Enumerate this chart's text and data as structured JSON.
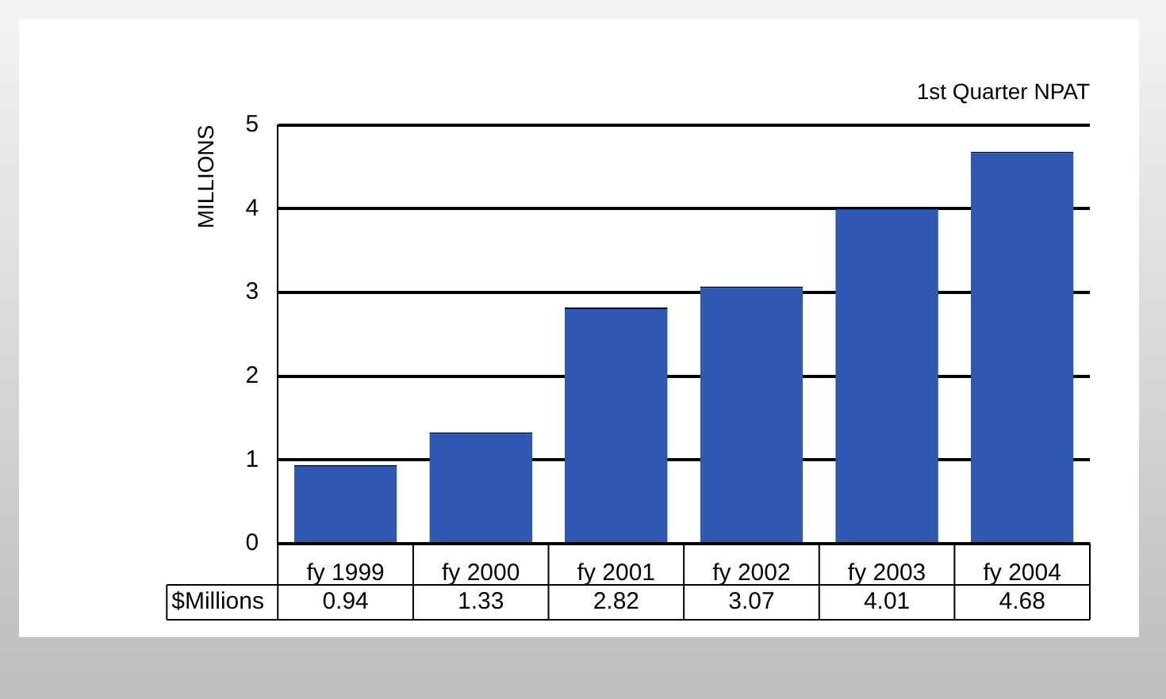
{
  "chart_data": {
    "type": "bar",
    "title": "1st Quarter NPAT",
    "ylabel": "MILLIONS",
    "categories": [
      "fy 1999",
      "fy 2000",
      "fy 2001",
      "fy 2002",
      "fy 2003",
      "fy 2004"
    ],
    "values": [
      0.94,
      1.33,
      2.82,
      3.07,
      4.01,
      4.68
    ],
    "color": "#2f58b0",
    "ylim": [
      0,
      5
    ],
    "yticks": [
      0,
      1,
      2,
      3,
      4,
      5
    ],
    "grid": "y",
    "data_labels": true,
    "annotations": [
      "$Millions"
    ]
  }
}
